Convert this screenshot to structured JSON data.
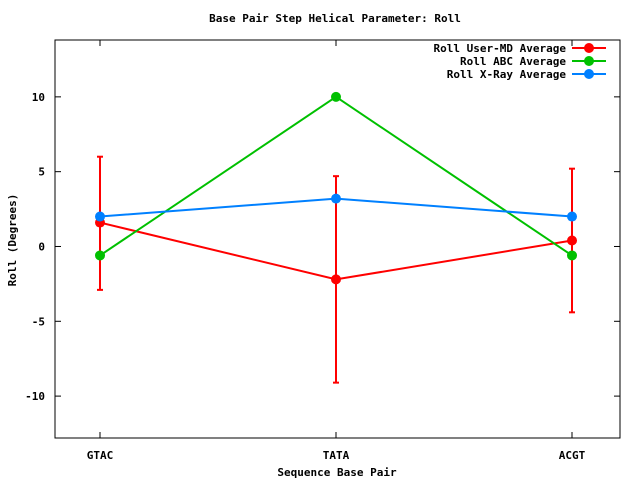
{
  "chart_data": {
    "type": "line",
    "title": "Base Pair Step Helical Parameter: Roll",
    "xlabel": "Sequence Base Pair",
    "ylabel": "Roll (Degrees)",
    "categories": [
      "GTAC",
      "TATA",
      "ACGT"
    ],
    "ylim": [
      -12.8,
      13.8
    ],
    "yticks": [
      -10,
      -5,
      0,
      5,
      10
    ],
    "grid": false,
    "legend_position": "top-right",
    "series": [
      {
        "name": "Roll User-MD Average",
        "color": "#ff0000",
        "values": [
          1.6,
          -2.2,
          0.4
        ],
        "err_low": [
          -2.9,
          -9.1,
          -4.4
        ],
        "err_high": [
          6.0,
          4.7,
          5.2
        ]
      },
      {
        "name": "Roll ABC Average",
        "color": "#00c000",
        "values": [
          -0.6,
          10.0,
          -0.6
        ]
      },
      {
        "name": "Roll X-Ray Average",
        "color": "#0080ff",
        "values": [
          2.0,
          3.2,
          2.0
        ]
      }
    ]
  }
}
